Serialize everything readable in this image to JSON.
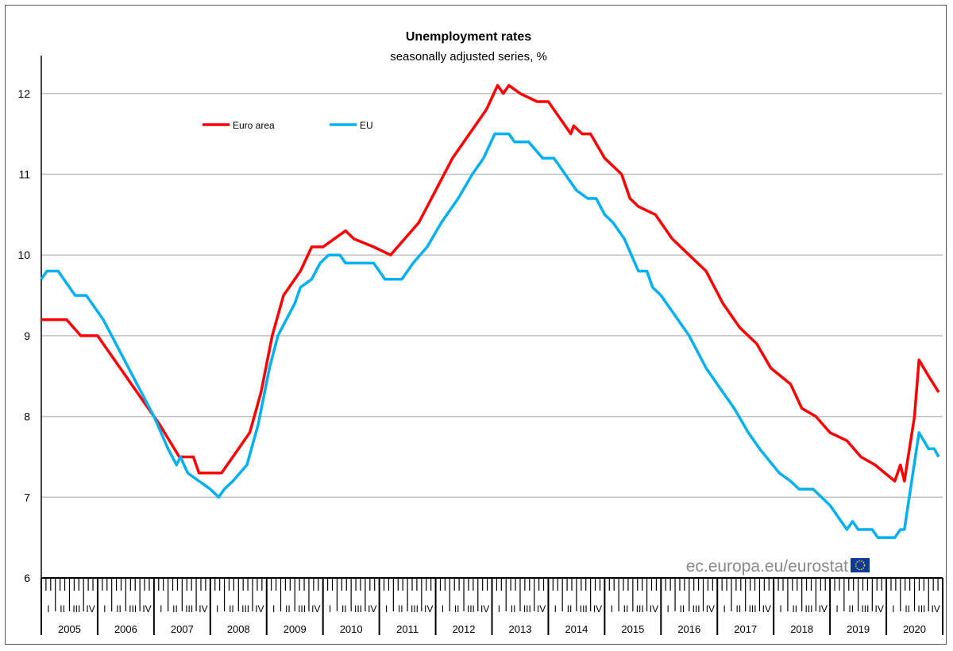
{
  "chart_data": {
    "type": "line",
    "title": "Unemployment rates",
    "subtitle": "seasonally adjusted series, %",
    "xlabel": "",
    "ylabel": "",
    "ylim": [
      6,
      12.5
    ],
    "yticks": [
      6,
      7,
      8,
      9,
      10,
      11,
      12
    ],
    "xlim": [
      2005,
      2021
    ],
    "years": [
      "2005",
      "2006",
      "2007",
      "2008",
      "2009",
      "2010",
      "2011",
      "2012",
      "2013",
      "2014",
      "2015",
      "2016",
      "2017",
      "2018",
      "2019",
      "2020"
    ],
    "quarters": [
      "I",
      "II",
      "III",
      "IV"
    ],
    "grid": true,
    "legend_position": "top-left",
    "watermark": "ec.europa.eu/eurostat",
    "series": [
      {
        "name": "Euro area",
        "color": "#ff0000",
        "points": [
          [
            2005.0,
            9.2
          ],
          [
            2005.45,
            9.2
          ],
          [
            2005.7,
            9.0
          ],
          [
            2006.0,
            9.0
          ],
          [
            2006.2,
            8.8
          ],
          [
            2006.5,
            8.5
          ],
          [
            2006.8,
            8.2
          ],
          [
            2007.1,
            7.9
          ],
          [
            2007.45,
            7.5
          ],
          [
            2007.7,
            7.5
          ],
          [
            2007.8,
            7.3
          ],
          [
            2008.2,
            7.3
          ],
          [
            2008.4,
            7.5
          ],
          [
            2008.7,
            7.8
          ],
          [
            2008.9,
            8.3
          ],
          [
            2009.1,
            9.0
          ],
          [
            2009.3,
            9.5
          ],
          [
            2009.6,
            9.8
          ],
          [
            2009.8,
            10.1
          ],
          [
            2010.0,
            10.1
          ],
          [
            2010.2,
            10.2
          ],
          [
            2010.4,
            10.3
          ],
          [
            2010.55,
            10.2
          ],
          [
            2010.9,
            10.1
          ],
          [
            2011.2,
            10.0
          ],
          [
            2011.45,
            10.2
          ],
          [
            2011.7,
            10.4
          ],
          [
            2012.0,
            10.8
          ],
          [
            2012.3,
            11.2
          ],
          [
            2012.6,
            11.5
          ],
          [
            2012.9,
            11.8
          ],
          [
            2013.1,
            12.1
          ],
          [
            2013.2,
            12.0
          ],
          [
            2013.3,
            12.1
          ],
          [
            2013.5,
            12.0
          ],
          [
            2013.8,
            11.9
          ],
          [
            2014.0,
            11.9
          ],
          [
            2014.2,
            11.7
          ],
          [
            2014.4,
            11.5
          ],
          [
            2014.45,
            11.6
          ],
          [
            2014.6,
            11.5
          ],
          [
            2014.75,
            11.5
          ],
          [
            2015.0,
            11.2
          ],
          [
            2015.3,
            11.0
          ],
          [
            2015.45,
            10.7
          ],
          [
            2015.6,
            10.6
          ],
          [
            2015.9,
            10.5
          ],
          [
            2016.2,
            10.2
          ],
          [
            2016.5,
            10.0
          ],
          [
            2016.8,
            9.8
          ],
          [
            2017.1,
            9.4
          ],
          [
            2017.4,
            9.1
          ],
          [
            2017.7,
            8.9
          ],
          [
            2017.95,
            8.6
          ],
          [
            2018.3,
            8.4
          ],
          [
            2018.5,
            8.1
          ],
          [
            2018.75,
            8.0
          ],
          [
            2019.0,
            7.8
          ],
          [
            2019.3,
            7.7
          ],
          [
            2019.55,
            7.5
          ],
          [
            2019.8,
            7.4
          ],
          [
            2020.15,
            7.2
          ],
          [
            2020.25,
            7.4
          ],
          [
            2020.32,
            7.2
          ],
          [
            2020.5,
            8.0
          ],
          [
            2020.58,
            8.7
          ],
          [
            2020.75,
            8.5
          ],
          [
            2020.93,
            8.3
          ]
        ]
      },
      {
        "name": "EU",
        "color": "#00b0f0",
        "points": [
          [
            2005.0,
            9.7
          ],
          [
            2005.1,
            9.8
          ],
          [
            2005.3,
            9.8
          ],
          [
            2005.4,
            9.7
          ],
          [
            2005.6,
            9.5
          ],
          [
            2005.8,
            9.5
          ],
          [
            2006.1,
            9.2
          ],
          [
            2006.4,
            8.8
          ],
          [
            2006.7,
            8.4
          ],
          [
            2007.0,
            8.0
          ],
          [
            2007.25,
            7.6
          ],
          [
            2007.4,
            7.4
          ],
          [
            2007.47,
            7.5
          ],
          [
            2007.6,
            7.3
          ],
          [
            2007.8,
            7.2
          ],
          [
            2008.0,
            7.1
          ],
          [
            2008.15,
            7.0
          ],
          [
            2008.25,
            7.1
          ],
          [
            2008.4,
            7.2
          ],
          [
            2008.65,
            7.4
          ],
          [
            2008.85,
            7.9
          ],
          [
            2009.05,
            8.6
          ],
          [
            2009.2,
            9.0
          ],
          [
            2009.5,
            9.4
          ],
          [
            2009.6,
            9.6
          ],
          [
            2009.8,
            9.7
          ],
          [
            2009.95,
            9.9
          ],
          [
            2010.1,
            10.0
          ],
          [
            2010.3,
            10.0
          ],
          [
            2010.4,
            9.9
          ],
          [
            2010.9,
            9.9
          ],
          [
            2011.0,
            9.8
          ],
          [
            2011.1,
            9.7
          ],
          [
            2011.4,
            9.7
          ],
          [
            2011.6,
            9.9
          ],
          [
            2011.85,
            10.1
          ],
          [
            2012.1,
            10.4
          ],
          [
            2012.4,
            10.7
          ],
          [
            2012.65,
            11.0
          ],
          [
            2012.85,
            11.2
          ],
          [
            2013.05,
            11.5
          ],
          [
            2013.3,
            11.5
          ],
          [
            2013.4,
            11.4
          ],
          [
            2013.65,
            11.4
          ],
          [
            2013.9,
            11.2
          ],
          [
            2014.1,
            11.2
          ],
          [
            2014.5,
            10.8
          ],
          [
            2014.7,
            10.7
          ],
          [
            2014.85,
            10.7
          ],
          [
            2015.0,
            10.5
          ],
          [
            2015.15,
            10.4
          ],
          [
            2015.35,
            10.2
          ],
          [
            2015.6,
            9.8
          ],
          [
            2015.75,
            9.8
          ],
          [
            2015.85,
            9.6
          ],
          [
            2016.0,
            9.5
          ],
          [
            2016.2,
            9.3
          ],
          [
            2016.5,
            9.0
          ],
          [
            2016.8,
            8.6
          ],
          [
            2017.1,
            8.3
          ],
          [
            2017.3,
            8.1
          ],
          [
            2017.55,
            7.8
          ],
          [
            2017.75,
            7.6
          ],
          [
            2018.1,
            7.3
          ],
          [
            2018.3,
            7.2
          ],
          [
            2018.45,
            7.1
          ],
          [
            2018.7,
            7.1
          ],
          [
            2018.85,
            7.0
          ],
          [
            2019.0,
            6.9
          ],
          [
            2019.3,
            6.6
          ],
          [
            2019.4,
            6.7
          ],
          [
            2019.5,
            6.6
          ],
          [
            2019.75,
            6.6
          ],
          [
            2019.85,
            6.5
          ],
          [
            2020.15,
            6.5
          ],
          [
            2020.25,
            6.6
          ],
          [
            2020.32,
            6.6
          ],
          [
            2020.45,
            7.2
          ],
          [
            2020.58,
            7.8
          ],
          [
            2020.75,
            7.6
          ],
          [
            2020.85,
            7.6
          ],
          [
            2020.93,
            7.5
          ]
        ]
      }
    ]
  }
}
